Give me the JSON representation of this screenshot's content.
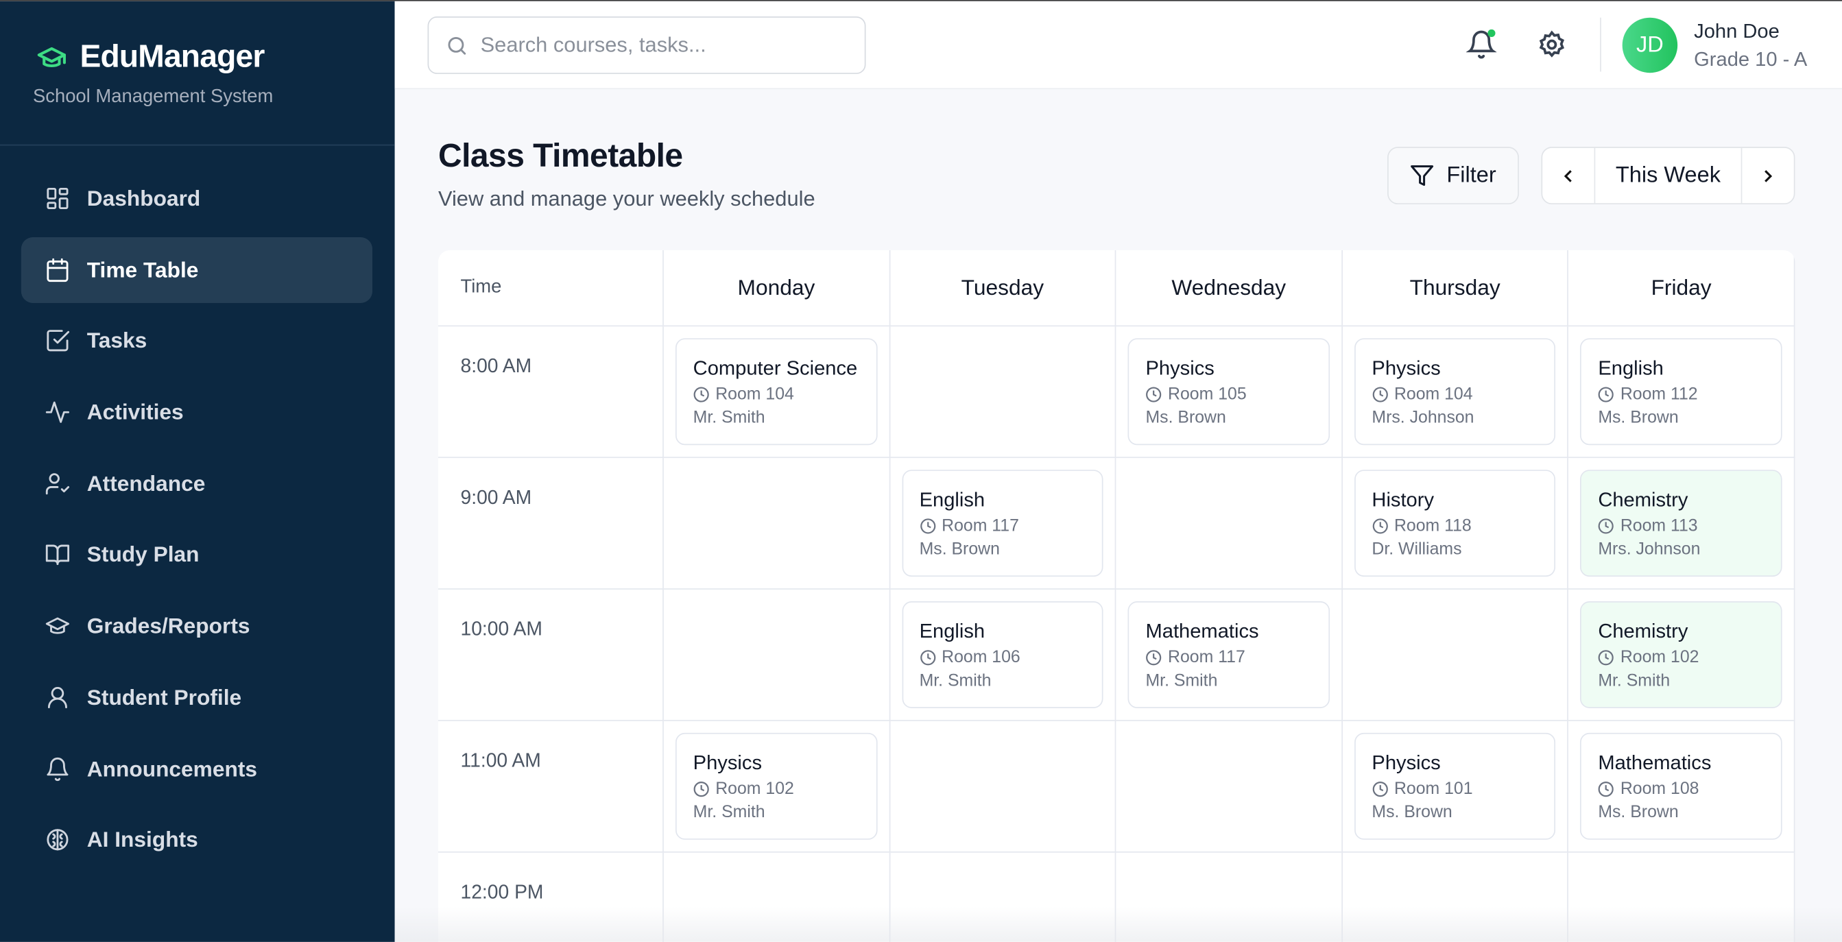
{
  "brand": {
    "name": "EduManager",
    "subtitle": "School Management System",
    "accent": "#3ddc84"
  },
  "sidebar": {
    "items": [
      {
        "label": "Dashboard",
        "icon": "dashboard-icon"
      },
      {
        "label": "Time Table",
        "icon": "calendar-icon",
        "active": true
      },
      {
        "label": "Tasks",
        "icon": "checkbox-icon"
      },
      {
        "label": "Activities",
        "icon": "activity-icon"
      },
      {
        "label": "Attendance",
        "icon": "user-check-icon"
      },
      {
        "label": "Study Plan",
        "icon": "book-icon"
      },
      {
        "label": "Grades/Reports",
        "icon": "graduation-cap-icon"
      },
      {
        "label": "Student Profile",
        "icon": "user-icon"
      },
      {
        "label": "Announcements",
        "icon": "bell-icon"
      },
      {
        "label": "AI Insights",
        "icon": "brain-icon"
      }
    ]
  },
  "header": {
    "search_placeholder": "Search courses, tasks...",
    "user": {
      "initials": "JD",
      "name": "John Doe",
      "grade": "Grade 10 - A"
    }
  },
  "page": {
    "title": "Class Timetable",
    "subtitle": "View and manage your weekly schedule",
    "filter_label": "Filter",
    "week_label": "This Week"
  },
  "timetable": {
    "time_header": "Time",
    "days": [
      "Monday",
      "Tuesday",
      "Wednesday",
      "Thursday",
      "Friday"
    ],
    "rows": [
      {
        "time": "8:00 AM",
        "slots": [
          {
            "subject": "Computer Science",
            "room": "Room 104",
            "teacher": "Mr. Smith"
          },
          null,
          {
            "subject": "Physics",
            "room": "Room 105",
            "teacher": "Ms. Brown"
          },
          {
            "subject": "Physics",
            "room": "Room 104",
            "teacher": "Mrs. Johnson"
          },
          {
            "subject": "English",
            "room": "Room 112",
            "teacher": "Ms. Brown"
          }
        ]
      },
      {
        "time": "9:00 AM",
        "slots": [
          null,
          {
            "subject": "English",
            "room": "Room 117",
            "teacher": "Ms. Brown"
          },
          null,
          {
            "subject": "History",
            "room": "Room 118",
            "teacher": "Dr. Williams"
          },
          {
            "subject": "Chemistry",
            "room": "Room 113",
            "teacher": "Mrs. Johnson"
          }
        ]
      },
      {
        "time": "10:00 AM",
        "slots": [
          null,
          {
            "subject": "English",
            "room": "Room 106",
            "teacher": "Mr. Smith"
          },
          {
            "subject": "Mathematics",
            "room": "Room 117",
            "teacher": "Mr. Smith"
          },
          null,
          {
            "subject": "Chemistry",
            "room": "Room 102",
            "teacher": "Mr. Smith"
          }
        ]
      },
      {
        "time": "11:00 AM",
        "slots": [
          {
            "subject": "Physics",
            "room": "Room 102",
            "teacher": "Mr. Smith"
          },
          null,
          null,
          {
            "subject": "Physics",
            "room": "Room 101",
            "teacher": "Ms. Brown"
          },
          {
            "subject": "Mathematics",
            "room": "Room 108",
            "teacher": "Ms. Brown"
          }
        ]
      },
      {
        "time": "12:00 PM",
        "slots": [
          null,
          null,
          null,
          null,
          null
        ]
      }
    ]
  }
}
